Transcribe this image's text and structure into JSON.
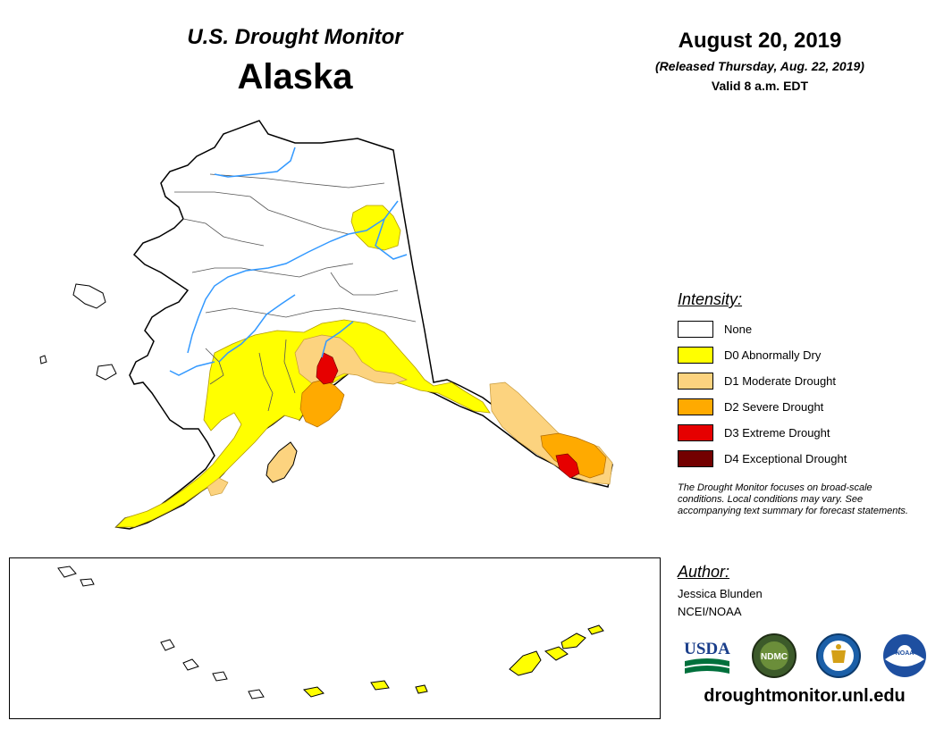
{
  "header": {
    "title_top": "U.S. Drought Monitor",
    "title_main": "Alaska",
    "date": "August 20, 2019",
    "released": "(Released Thursday, Aug. 22, 2019)",
    "valid": "Valid 8 a.m. EDT"
  },
  "legend": {
    "heading": "Intensity:",
    "items": [
      {
        "label": "None",
        "color": "#ffffff"
      },
      {
        "label": "D0 Abnormally Dry",
        "color": "#ffff00"
      },
      {
        "label": "D1 Moderate Drought",
        "color": "#fcd37f"
      },
      {
        "label": "D2 Severe Drought",
        "color": "#ffaa00"
      },
      {
        "label": "D3 Extreme Drought",
        "color": "#e60000"
      },
      {
        "label": "D4 Exceptional Drought",
        "color": "#730000"
      }
    ]
  },
  "note": "The Drought Monitor focuses on broad-scale conditions. Local conditions may vary. See accompanying text summary for forecast statements.",
  "author": {
    "heading": "Author:",
    "name": "Jessica Blunden",
    "org": "NCEI/NOAA"
  },
  "logos": {
    "usda": "USDA",
    "ndmc": "NDMC",
    "noaa": "NOAA"
  },
  "footer": {
    "url": "droughtmonitor.unl.edu"
  },
  "colors": {
    "river": "#3399ff",
    "border": "#000000",
    "region_border": "#555555"
  }
}
